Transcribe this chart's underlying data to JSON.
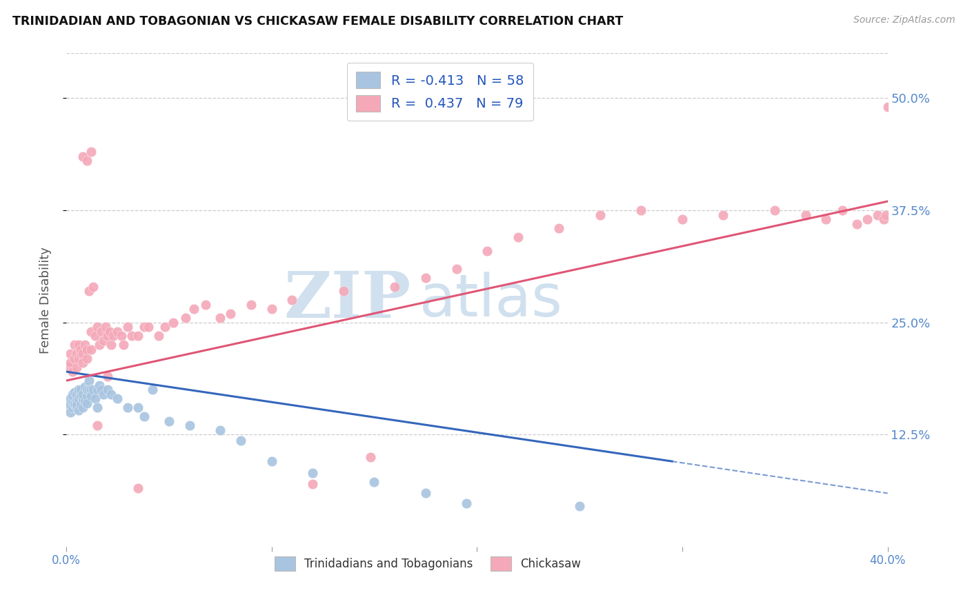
{
  "title": "TRINIDADIAN AND TOBAGONIAN VS CHICKASAW FEMALE DISABILITY CORRELATION CHART",
  "source": "Source: ZipAtlas.com",
  "ylabel": "Female Disability",
  "yticks_labels": [
    "12.5%",
    "25.0%",
    "37.5%",
    "50.0%"
  ],
  "ytick_vals": [
    0.125,
    0.25,
    0.375,
    0.5
  ],
  "xtick_labels": [
    "0.0%",
    "40.0%"
  ],
  "xlim": [
    0.0,
    0.4
  ],
  "ylim": [
    0.0,
    0.55
  ],
  "legend_labels": [
    "Trinidadians and Tobagonians",
    "Chickasaw"
  ],
  "blue_R": -0.413,
  "blue_N": 58,
  "pink_R": 0.437,
  "pink_N": 79,
  "blue_color": "#a8c4e0",
  "pink_color": "#f4a8b8",
  "blue_line_color": "#3366bb",
  "pink_line_color": "#e05575",
  "watermark_zip": "ZIP",
  "watermark_atlas": "atlas",
  "watermark_color": "#d0e0ee",
  "blue_scatter_x": [
    0.001,
    0.001,
    0.002,
    0.002,
    0.002,
    0.003,
    0.003,
    0.003,
    0.003,
    0.004,
    0.004,
    0.004,
    0.005,
    0.005,
    0.005,
    0.005,
    0.006,
    0.006,
    0.006,
    0.007,
    0.007,
    0.007,
    0.008,
    0.008,
    0.008,
    0.009,
    0.009,
    0.01,
    0.01,
    0.01,
    0.011,
    0.011,
    0.012,
    0.012,
    0.013,
    0.014,
    0.015,
    0.015,
    0.016,
    0.017,
    0.018,
    0.02,
    0.022,
    0.025,
    0.03,
    0.035,
    0.038,
    0.042,
    0.05,
    0.06,
    0.075,
    0.085,
    0.1,
    0.12,
    0.15,
    0.175,
    0.195,
    0.25
  ],
  "blue_scatter_y": [
    0.16,
    0.155,
    0.165,
    0.158,
    0.15,
    0.162,
    0.17,
    0.155,
    0.168,
    0.158,
    0.172,
    0.16,
    0.163,
    0.155,
    0.17,
    0.158,
    0.165,
    0.175,
    0.152,
    0.168,
    0.175,
    0.158,
    0.165,
    0.17,
    0.155,
    0.162,
    0.178,
    0.168,
    0.175,
    0.16,
    0.175,
    0.185,
    0.175,
    0.168,
    0.175,
    0.165,
    0.175,
    0.155,
    0.18,
    0.175,
    0.17,
    0.175,
    0.17,
    0.165,
    0.155,
    0.155,
    0.145,
    0.175,
    0.14,
    0.135,
    0.13,
    0.118,
    0.095,
    0.082,
    0.072,
    0.06,
    0.048,
    0.045
  ],
  "pink_scatter_x": [
    0.001,
    0.002,
    0.002,
    0.003,
    0.004,
    0.004,
    0.005,
    0.005,
    0.006,
    0.006,
    0.007,
    0.007,
    0.008,
    0.008,
    0.009,
    0.01,
    0.01,
    0.011,
    0.012,
    0.012,
    0.013,
    0.014,
    0.015,
    0.016,
    0.017,
    0.018,
    0.019,
    0.02,
    0.021,
    0.022,
    0.023,
    0.025,
    0.027,
    0.028,
    0.03,
    0.032,
    0.035,
    0.038,
    0.04,
    0.045,
    0.048,
    0.052,
    0.058,
    0.062,
    0.068,
    0.075,
    0.08,
    0.09,
    0.1,
    0.11,
    0.12,
    0.135,
    0.148,
    0.16,
    0.175,
    0.19,
    0.205,
    0.22,
    0.24,
    0.26,
    0.28,
    0.3,
    0.32,
    0.345,
    0.36,
    0.37,
    0.378,
    0.385,
    0.39,
    0.395,
    0.398,
    0.399,
    0.4,
    0.035,
    0.008,
    0.01,
    0.012,
    0.015,
    0.02
  ],
  "pink_scatter_y": [
    0.2,
    0.205,
    0.215,
    0.195,
    0.21,
    0.225,
    0.215,
    0.2,
    0.21,
    0.225,
    0.215,
    0.22,
    0.215,
    0.205,
    0.225,
    0.21,
    0.22,
    0.285,
    0.22,
    0.24,
    0.29,
    0.235,
    0.245,
    0.225,
    0.24,
    0.23,
    0.245,
    0.235,
    0.24,
    0.225,
    0.235,
    0.24,
    0.235,
    0.225,
    0.245,
    0.235,
    0.235,
    0.245,
    0.245,
    0.235,
    0.245,
    0.25,
    0.255,
    0.265,
    0.27,
    0.255,
    0.26,
    0.27,
    0.265,
    0.275,
    0.07,
    0.285,
    0.1,
    0.29,
    0.3,
    0.31,
    0.33,
    0.345,
    0.355,
    0.37,
    0.375,
    0.365,
    0.37,
    0.375,
    0.37,
    0.365,
    0.375,
    0.36,
    0.365,
    0.37,
    0.365,
    0.37,
    0.49,
    0.065,
    0.435,
    0.43,
    0.44,
    0.135,
    0.19
  ]
}
